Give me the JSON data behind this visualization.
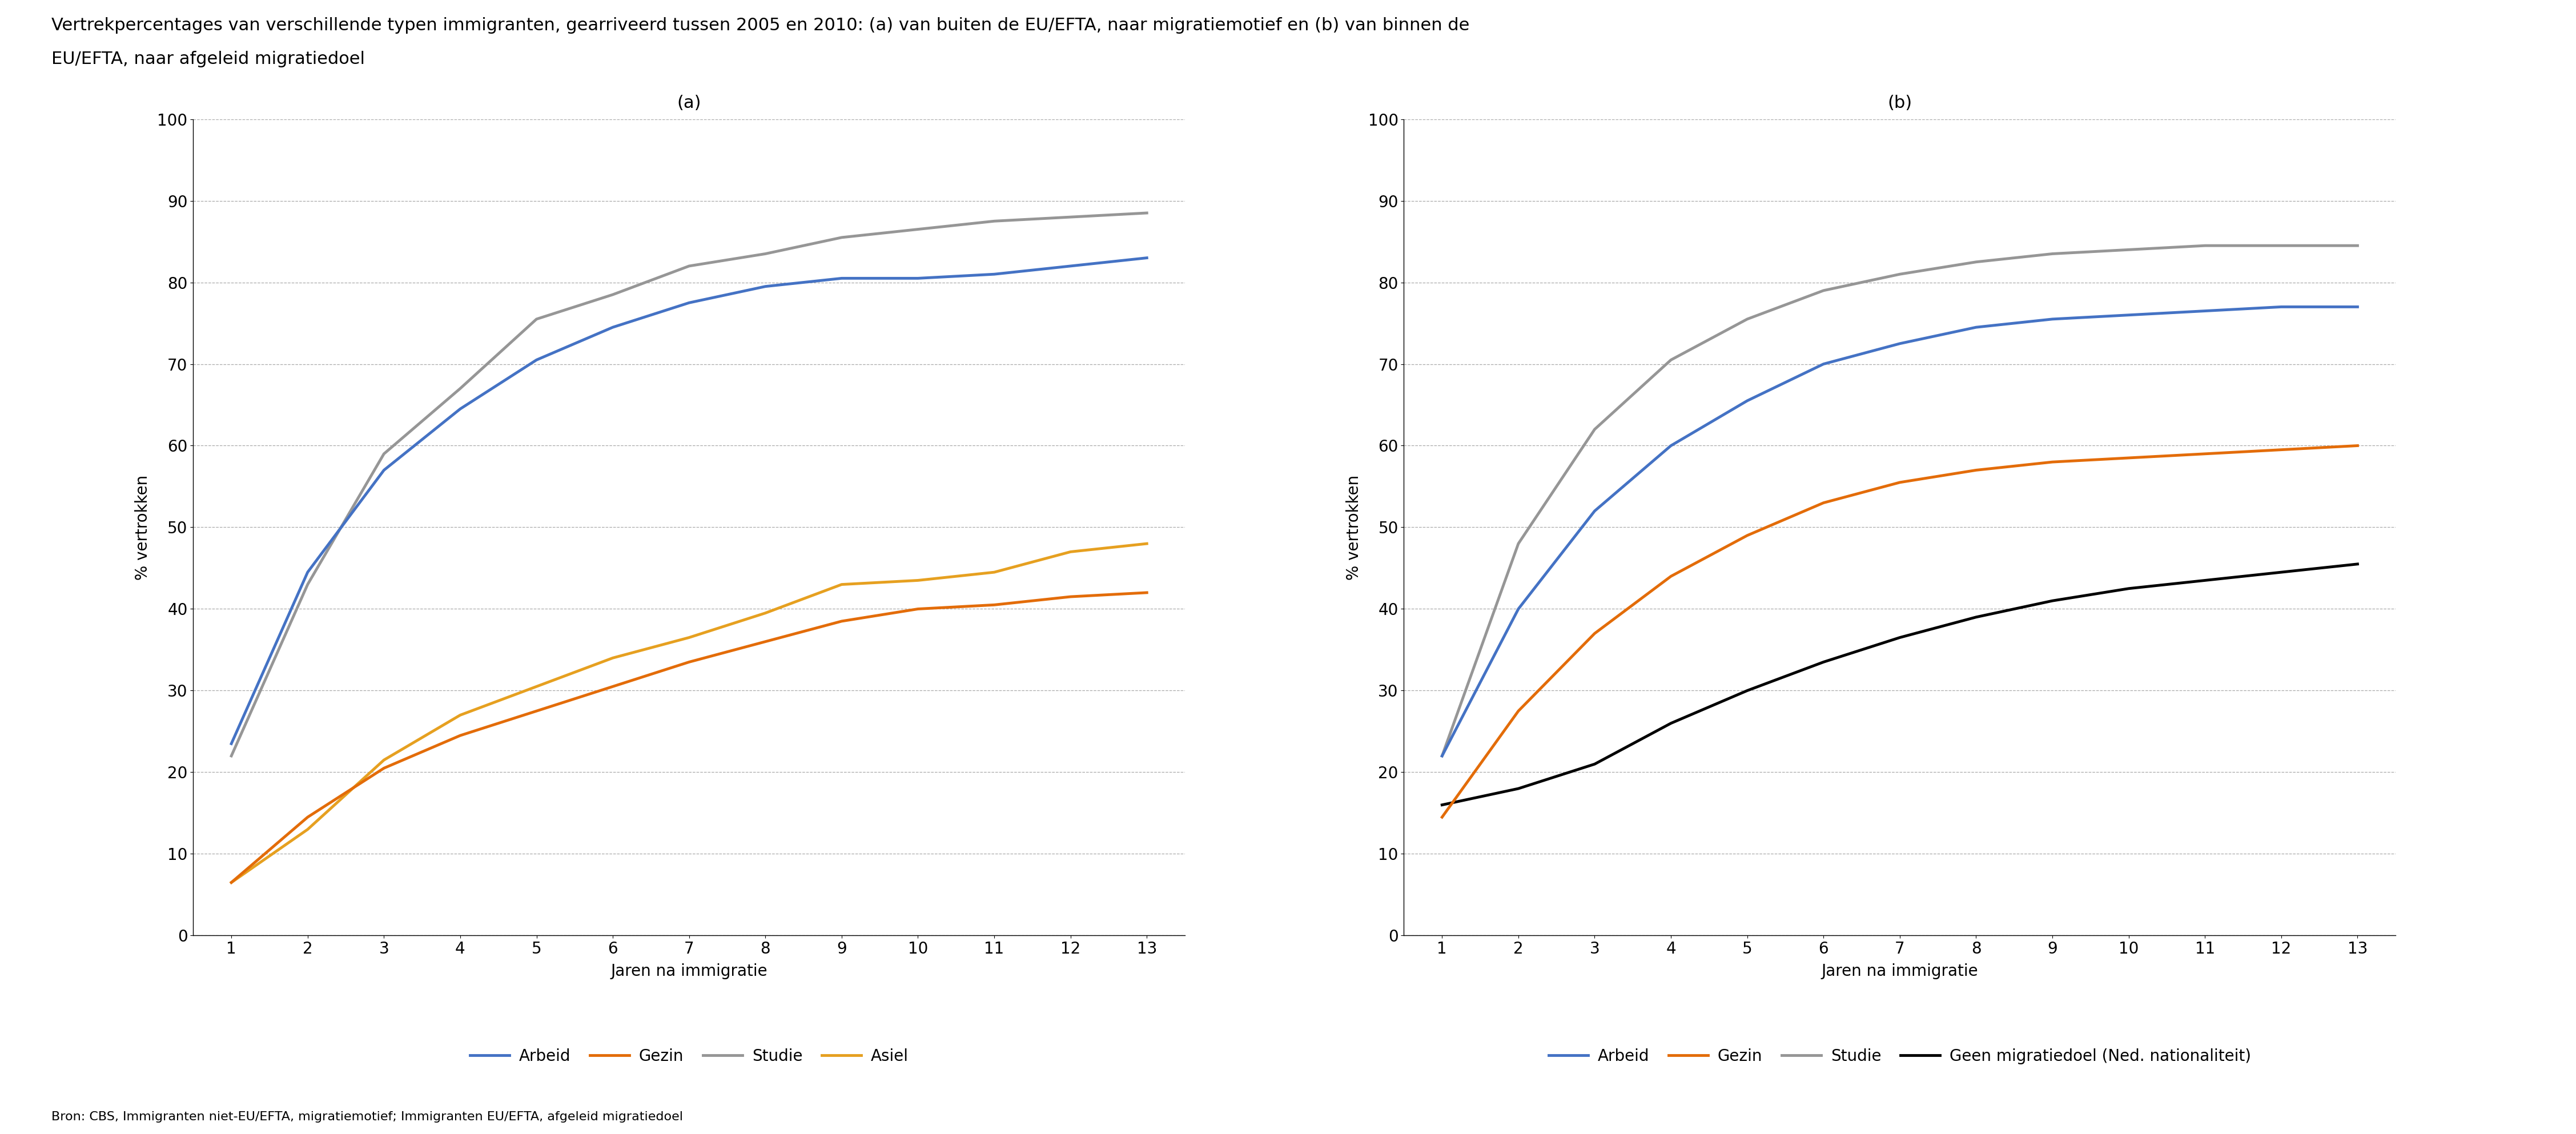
{
  "title_line1": "Vertrekpercentages van verschillende typen immigranten, gearriveerd tussen 2005 en 2010: (a) van buiten de EU/EFTA, naar migratiemotief en (b) van binnen de",
  "title_line2": "EU/EFTA, naar afgeleid migratiedoel",
  "source": "Bron: CBS, Immigranten niet-EU/EFTA, migratiemotief; Immigranten EU/EFTA, afgeleid migratiedoel",
  "xlabel": "Jaren na immigratie",
  "ylabel": "% vertrokken",
  "x": [
    1,
    2,
    3,
    4,
    5,
    6,
    7,
    8,
    9,
    10,
    11,
    12,
    13
  ],
  "panel_a": {
    "title": "(a)",
    "arbeid": [
      23.5,
      44.5,
      57.0,
      64.5,
      70.5,
      74.5,
      77.5,
      79.5,
      80.5,
      80.5,
      81.0,
      82.0,
      83.0
    ],
    "gezin": [
      6.5,
      14.5,
      20.5,
      24.5,
      27.5,
      30.5,
      33.5,
      36.0,
      38.5,
      40.0,
      40.5,
      41.5,
      42.0
    ],
    "studie": [
      22.0,
      43.0,
      59.0,
      67.0,
      75.5,
      78.5,
      82.0,
      83.5,
      85.5,
      86.5,
      87.5,
      88.0,
      88.5
    ],
    "asiel": [
      6.5,
      13.0,
      21.5,
      27.0,
      30.5,
      34.0,
      36.5,
      39.5,
      43.0,
      43.5,
      44.5,
      47.0,
      48.0
    ]
  },
  "panel_b": {
    "title": "(b)",
    "arbeid": [
      22.0,
      40.0,
      52.0,
      60.0,
      65.5,
      70.0,
      72.5,
      74.5,
      75.5,
      76.0,
      76.5,
      77.0,
      77.0
    ],
    "gezin": [
      14.5,
      27.5,
      37.0,
      44.0,
      49.0,
      53.0,
      55.5,
      57.0,
      58.0,
      58.5,
      59.0,
      59.5,
      60.0
    ],
    "studie": [
      22.0,
      48.0,
      62.0,
      70.5,
      75.5,
      79.0,
      81.0,
      82.5,
      83.5,
      84.0,
      84.5,
      84.5,
      84.5
    ],
    "geen": [
      16.0,
      18.0,
      21.0,
      26.0,
      30.0,
      33.5,
      36.5,
      39.0,
      41.0,
      42.5,
      43.5,
      44.5,
      45.5
    ]
  },
  "colors": {
    "arbeid": "#4472C4",
    "gezin": "#E36C09",
    "studie": "#969696",
    "asiel": "#E6A020",
    "geen": "#000000"
  },
  "ylim": [
    0,
    100
  ],
  "yticks": [
    0,
    10,
    20,
    30,
    40,
    50,
    60,
    70,
    80,
    90,
    100
  ],
  "xticks": [
    1,
    2,
    3,
    4,
    5,
    6,
    7,
    8,
    9,
    10,
    11,
    12,
    13
  ],
  "line_width": 3.5,
  "grid_color": "#888888",
  "grid_style": "--",
  "background_color": "#ffffff",
  "title_fontsize": 22,
  "axis_label_fontsize": 20,
  "tick_fontsize": 20,
  "legend_fontsize": 20,
  "source_fontsize": 16,
  "panel_title_fontsize": 22
}
